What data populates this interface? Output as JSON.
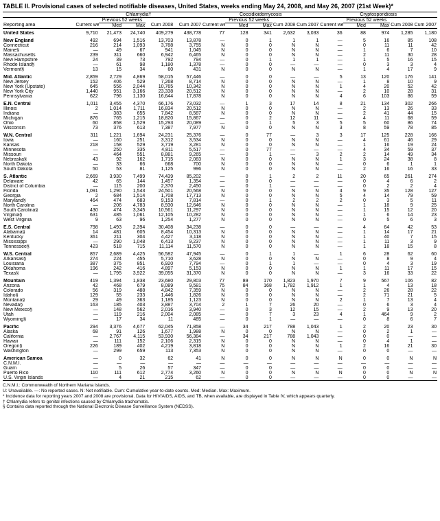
{
  "title": "TABLE II. Provisional cases of selected notifiable diseases, United States, weeks ending May 24, 2008, and May 26, 2007 (21st Week)*",
  "diseases": [
    "Chlamydia†",
    "Coccidioidomycosis",
    "Cryptosporidiosis"
  ],
  "col_headers": {
    "area": "Reporting area",
    "current": "Current week",
    "prev": "Previous 52 weeks",
    "med": "Med",
    "max": "Max",
    "cum08": "Cum 2008",
    "cum07": "Cum 2007"
  },
  "rows": [
    {
      "a": "United States",
      "b": 1,
      "v": [
        "9,710",
        "21,473",
        "24,740",
        "409,279",
        "438,778",
        "77",
        "128",
        "341",
        "2,632",
        "3,033",
        "36",
        "88",
        "974",
        "1,285",
        "1,180"
      ]
    },
    {
      "a": "New England",
      "b": 1,
      "v": [
        "492",
        "694",
        "1,516",
        "13,703",
        "13,878",
        "—",
        "0",
        "1",
        "1",
        "1",
        "—",
        "5",
        "16",
        "85",
        "108"
      ]
    },
    {
      "a": "Connecticut",
      "v": [
        "216",
        "214",
        "1,093",
        "3,788",
        "3,755",
        "N",
        "0",
        "0",
        "N",
        "N",
        "—",
        "0",
        "11",
        "11",
        "42"
      ]
    },
    {
      "a": "Maine§",
      "v": [
        "—",
        "49",
        "67",
        "941",
        "1,045",
        "N",
        "0",
        "0",
        "N",
        "N",
        "—",
        "1",
        "6",
        "7",
        "10"
      ]
    },
    {
      "a": "Massachusetts",
      "v": [
        "239",
        "311",
        "660",
        "6,942",
        "6,465",
        "N",
        "0",
        "0",
        "N",
        "N",
        "—",
        "2",
        "11",
        "30",
        "28"
      ]
    },
    {
      "a": "New Hampshire",
      "v": [
        "24",
        "39",
        "73",
        "792",
        "794",
        "—",
        "0",
        "1",
        "1",
        "1",
        "—",
        "1",
        "5",
        "16",
        "15"
      ]
    },
    {
      "a": "Rhode Island§",
      "v": [
        "—",
        "61",
        "98",
        "1,180",
        "1,378",
        "—",
        "0",
        "0",
        "—",
        "—",
        "—",
        "0",
        "3",
        "3",
        "4"
      ]
    },
    {
      "a": "Vermont§",
      "v": [
        "13",
        "15",
        "34",
        "60",
        "431",
        "N",
        "0",
        "0",
        "N",
        "N",
        "—",
        "1",
        "4",
        "17",
        "9"
      ]
    },
    {
      "a": "Mid. Atlantic",
      "b": 1,
      "v": [
        "2,859",
        "2,729",
        "4,869",
        "58,015",
        "57,446",
        "—",
        "0",
        "0",
        "—",
        "—",
        "5",
        "13",
        "120",
        "176",
        "141"
      ]
    },
    {
      "a": "New Jersey",
      "v": [
        "152",
        "406",
        "529",
        "7,268",
        "8,714",
        "N",
        "0",
        "0",
        "N",
        "N",
        "—",
        "1",
        "8",
        "10",
        "9"
      ]
    },
    {
      "a": "New York (Upstate)",
      "v": [
        "645",
        "556",
        "2,044",
        "10,765",
        "10,342",
        "N",
        "0",
        "0",
        "N",
        "N",
        "1",
        "4",
        "20",
        "52",
        "42"
      ]
    },
    {
      "a": "New York City",
      "v": [
        "1,440",
        "951",
        "3,166",
        "23,338",
        "20,512",
        "N",
        "0",
        "0",
        "N",
        "N",
        "—",
        "2",
        "10",
        "28",
        "31"
      ]
    },
    {
      "a": "Pennsylvania",
      "v": [
        "622",
        "796",
        "1,130",
        "16,644",
        "17,878",
        "N",
        "0",
        "0",
        "N",
        "N",
        "4",
        "6",
        "103",
        "86",
        "59"
      ]
    },
    {
      "a": "E.N. Central",
      "b": 1,
      "v": [
        "1,011",
        "3,455",
        "4,370",
        "66,176",
        "73,032",
        "—",
        "1",
        "3",
        "17",
        "14",
        "8",
        "21",
        "134",
        "302",
        "266"
      ]
    },
    {
      "a": "Illinois",
      "v": [
        "2",
        "1,014",
        "1,711",
        "16,834",
        "20,512",
        "N",
        "0",
        "0",
        "N",
        "N",
        "—",
        "2",
        "13",
        "26",
        "33"
      ]
    },
    {
      "a": "Indiana",
      "v": [
        "—",
        "383",
        "655",
        "7,842",
        "8,587",
        "N",
        "0",
        "0",
        "N",
        "N",
        "—",
        "2",
        "41",
        "44",
        "15"
      ]
    },
    {
      "a": "Michigan",
      "v": [
        "876",
        "765",
        "1,215",
        "18,820",
        "15,867",
        "—",
        "0",
        "2",
        "12",
        "11",
        "—",
        "4",
        "11",
        "68",
        "59"
      ]
    },
    {
      "a": "Ohio",
      "v": [
        "60",
        "858",
        "1,529",
        "15,293",
        "20,089",
        "—",
        "0",
        "1",
        "5",
        "3",
        "5",
        "5",
        "60",
        "86",
        "74"
      ]
    },
    {
      "a": "Wisconsin",
      "v": [
        "73",
        "376",
        "613",
        "7,387",
        "7,977",
        "N",
        "0",
        "0",
        "N",
        "N",
        "3",
        "8",
        "59",
        "78",
        "85"
      ]
    },
    {
      "a": "W.N. Central",
      "b": 1,
      "v": [
        "311",
        "1,221",
        "1,694",
        "24,231",
        "25,376",
        "—",
        "0",
        "77",
        "—",
        "3",
        "3",
        "17",
        "125",
        "228",
        "166"
      ]
    },
    {
      "a": "Iowa",
      "v": [
        "—",
        "160",
        "251",
        "3,312",
        "3,534",
        "N",
        "0",
        "0",
        "N",
        "N",
        "—",
        "4",
        "61",
        "46",
        "29"
      ]
    },
    {
      "a": "Kansas",
      "v": [
        "218",
        "158",
        "529",
        "3,719",
        "3,281",
        "N",
        "0",
        "0",
        "N",
        "N",
        "—",
        "1",
        "16",
        "19",
        "24"
      ]
    },
    {
      "a": "Minnesota",
      "v": [
        "—",
        "250",
        "335",
        "4,811",
        "5,517",
        "—",
        "0",
        "77",
        "—",
        "—",
        "—",
        "4",
        "34",
        "59",
        "37"
      ]
    },
    {
      "a": "Missouri",
      "v": [
        "—",
        "464",
        "551",
        "8,881",
        "9,265",
        "—",
        "0",
        "1",
        "—",
        "3",
        "2",
        "2",
        "14",
        "49",
        "34"
      ]
    },
    {
      "a": "Nebraska§",
      "v": [
        "43",
        "92",
        "162",
        "1,715",
        "2,083",
        "N",
        "0",
        "0",
        "N",
        "N",
        "1",
        "3",
        "24",
        "38",
        "8"
      ]
    },
    {
      "a": "North Dakota",
      "v": [
        "—",
        "33",
        "66",
        "668",
        "700",
        "N",
        "0",
        "0",
        "N",
        "N",
        "—",
        "0",
        "6",
        "1",
        "1"
      ]
    },
    {
      "a": "South Dakota",
      "v": [
        "50",
        "53",
        "81",
        "1,125",
        "996",
        "N",
        "0",
        "0",
        "N",
        "N",
        "—",
        "2",
        "16",
        "16",
        "33"
      ]
    },
    {
      "a": "S. Atlantic",
      "b": 1,
      "v": [
        "2,669",
        "3,930",
        "7,499",
        "74,439",
        "85,202",
        "—",
        "0",
        "1",
        "2",
        "2",
        "11",
        "20",
        "65",
        "261",
        "274"
      ]
    },
    {
      "a": "Delaware",
      "v": [
        "42",
        "65",
        "144",
        "1,457",
        "1,354",
        "—",
        "0",
        "0",
        "—",
        "—",
        "—",
        "0",
        "4",
        "6",
        "2"
      ]
    },
    {
      "a": "District of Columbia",
      "v": [
        "—",
        "115",
        "200",
        "2,370",
        "2,450",
        "—",
        "0",
        "1",
        "—",
        "—",
        "—",
        "0",
        "2",
        "2",
        "4"
      ]
    },
    {
      "a": "Florida",
      "v": [
        "1,091",
        "1,290",
        "1,543",
        "24,501",
        "20,568",
        "N",
        "0",
        "0",
        "N",
        "N",
        "4",
        "9",
        "35",
        "128",
        "127"
      ]
    },
    {
      "a": "Georgia",
      "v": [
        "2",
        "684",
        "1,514",
        "1,708",
        "17,713",
        "N",
        "0",
        "0",
        "N",
        "N",
        "5",
        "4",
        "14",
        "79",
        "59"
      ]
    },
    {
      "a": "Maryland§",
      "v": [
        "464",
        "474",
        "683",
        "9,153",
        "7,814",
        "—",
        "0",
        "1",
        "2",
        "2",
        "2",
        "0",
        "3",
        "5",
        "11"
      ]
    },
    {
      "a": "North Carolina",
      "v": [
        "—",
        "206",
        "4,783",
        "8,930",
        "12,646",
        "N",
        "0",
        "0",
        "N",
        "N",
        "—",
        "1",
        "18",
        "9",
        "25"
      ]
    },
    {
      "a": "South Carolina§",
      "v": [
        "430",
        "474",
        "3,345",
        "10,561",
        "11,297",
        "N",
        "0",
        "0",
        "N",
        "N",
        "—",
        "1",
        "15",
        "12",
        "20"
      ]
    },
    {
      "a": "Virginia§",
      "v": [
        "631",
        "485",
        "1,061",
        "12,105",
        "10,282",
        "N",
        "0",
        "0",
        "N",
        "N",
        "—",
        "1",
        "6",
        "14",
        "23"
      ]
    },
    {
      "a": "West Virginia",
      "v": [
        "9",
        "63",
        "96",
        "1,254",
        "1,277",
        "N",
        "0",
        "0",
        "N",
        "N",
        "—",
        "0",
        "5",
        "6",
        "3"
      ]
    },
    {
      "a": "E.S. Central",
      "b": 1,
      "v": [
        "798",
        "1,493",
        "2,394",
        "30,408",
        "34,238",
        "—",
        "0",
        "0",
        "—",
        "—",
        "—",
        "4",
        "64",
        "42",
        "53"
      ]
    },
    {
      "a": "Alabama§",
      "v": [
        "14",
        "481",
        "605",
        "8,454",
        "10,313",
        "N",
        "0",
        "0",
        "N",
        "N",
        "—",
        "1",
        "14",
        "17",
        "21"
      ]
    },
    {
      "a": "Kentucky",
      "v": [
        "361",
        "211",
        "304",
        "4,427",
        "3,118",
        "N",
        "0",
        "0",
        "N",
        "N",
        "—",
        "1",
        "40",
        "7",
        "15"
      ]
    },
    {
      "a": "Mississippi",
      "v": [
        "—",
        "290",
        "1,048",
        "6,413",
        "9,237",
        "N",
        "0",
        "0",
        "N",
        "N",
        "—",
        "1",
        "11",
        "3",
        "9"
      ]
    },
    {
      "a": "Tennessee§",
      "v": [
        "423",
        "518",
        "715",
        "11,114",
        "11,570",
        "N",
        "0",
        "0",
        "N",
        "N",
        "—",
        "1",
        "18",
        "15",
        "8"
      ]
    },
    {
      "a": "W.S. Central",
      "b": 1,
      "v": [
        "857",
        "2,689",
        "4,425",
        "56,582",
        "47,945",
        "—",
        "0",
        "1",
        "1",
        "—",
        "1",
        "6",
        "28",
        "62",
        "60"
      ]
    },
    {
      "a": "Arkansas§",
      "v": [
        "274",
        "224",
        "455",
        "5,710",
        "3,628",
        "N",
        "0",
        "0",
        "N",
        "N",
        "—",
        "0",
        "8",
        "9",
        "4"
      ]
    },
    {
      "a": "Louisiana",
      "v": [
        "387",
        "375",
        "851",
        "6,920",
        "7,794",
        "—",
        "0",
        "1",
        "1",
        "—",
        "—",
        "0",
        "4",
        "3",
        "19"
      ]
    },
    {
      "a": "Oklahoma",
      "v": [
        "196",
        "242",
        "416",
        "4,897",
        "5,153",
        "N",
        "0",
        "0",
        "N",
        "N",
        "1",
        "1",
        "11",
        "17",
        "15"
      ]
    },
    {
      "a": "Texas§",
      "v": [
        "—",
        "1,795",
        "3,922",
        "39,055",
        "31,370",
        "N",
        "0",
        "0",
        "N",
        "N",
        "—",
        "3",
        "16",
        "33",
        "22"
      ]
    },
    {
      "a": "Mountain",
      "b": 1,
      "v": [
        "419",
        "1,394",
        "1,838",
        "23,680",
        "29,803",
        "77",
        "89",
        "170",
        "1,823",
        "1,970",
        "7",
        "9",
        "567",
        "106",
        "82"
      ]
    },
    {
      "a": "Arizona",
      "v": [
        "42",
        "468",
        "679",
        "8,089",
        "9,581",
        "75",
        "84",
        "168",
        "1,782",
        "1,912",
        "1",
        "1",
        "4",
        "13",
        "18"
      ]
    },
    {
      "a": "Colorado",
      "v": [
        "56",
        "319",
        "488",
        "4,842",
        "7,359",
        "N",
        "0",
        "0",
        "N",
        "N",
        "—",
        "2",
        "26",
        "28",
        "22"
      ]
    },
    {
      "a": "Idaho§",
      "v": [
        "129",
        "55",
        "233",
        "1,446",
        "1,826",
        "N",
        "0",
        "0",
        "N",
        "N",
        "—",
        "2",
        "71",
        "21",
        "5"
      ]
    },
    {
      "a": "Montana§",
      "v": [
        "29",
        "49",
        "363",
        "1,185",
        "1,123",
        "N",
        "0",
        "0",
        "N",
        "N",
        "2",
        "1",
        "7",
        "13",
        "4"
      ]
    },
    {
      "a": "Nevada§",
      "v": [
        "163",
        "185",
        "403",
        "3,887",
        "3,704",
        "2",
        "1",
        "7",
        "26",
        "20",
        "—",
        "0",
        "6",
        "3",
        "4"
      ]
    },
    {
      "a": "New Mexico§",
      "v": [
        "—",
        "148",
        "562",
        "2,016",
        "3,940",
        "—",
        "0",
        "3",
        "12",
        "15",
        "—",
        "2",
        "9",
        "13",
        "20"
      ]
    },
    {
      "a": "Utah",
      "v": [
        "—",
        "119",
        "216",
        "2,004",
        "2,085",
        "—",
        "0",
        "7",
        "3",
        "23",
        "4",
        "1",
        "464",
        "9",
        "2"
      ]
    },
    {
      "a": "Wyoming§",
      "v": [
        "—",
        "17",
        "34",
        "11",
        "485",
        "—",
        "0",
        "1",
        "—",
        "—",
        "—",
        "0",
        "8",
        "6",
        "7"
      ]
    },
    {
      "a": "Pacific",
      "b": 1,
      "v": [
        "294",
        "3,376",
        "4,677",
        "62,045",
        "71,858",
        "—",
        "34",
        "217",
        "788",
        "1,043",
        "1",
        "2",
        "20",
        "23",
        "30"
      ]
    },
    {
      "a": "Alaska",
      "v": [
        "68",
        "91",
        "126",
        "1,677",
        "1,988",
        "N",
        "0",
        "0",
        "N",
        "N",
        "—",
        "0",
        "2",
        "1",
        "—"
      ]
    },
    {
      "a": "California",
      "v": [
        "—",
        "2,767",
        "4,115",
        "53,930",
        "56,384",
        "—",
        "34",
        "217",
        "788",
        "1,043",
        "—",
        "0",
        "0",
        "—",
        "—"
      ]
    },
    {
      "a": "Hawaii",
      "v": [
        "—",
        "111",
        "152",
        "2,106",
        "2,315",
        "N",
        "0",
        "0",
        "N",
        "N",
        "—",
        "0",
        "4",
        "1",
        "—"
      ]
    },
    {
      "a": "Oregon§",
      "v": [
        "226",
        "189",
        "402",
        "4,219",
        "3,818",
        "N",
        "0",
        "0",
        "N",
        "N",
        "1",
        "2",
        "16",
        "21",
        "30"
      ]
    },
    {
      "a": "Washington",
      "v": [
        "—",
        "299",
        "659",
        "113",
        "7,353",
        "N",
        "0",
        "0",
        "N",
        "N",
        "—",
        "0",
        "0",
        "—",
        "—"
      ]
    },
    {
      "a": "American Samoa",
      "b": 1,
      "v": [
        "—",
        "0",
        "32",
        "62",
        "41",
        "N",
        "0",
        "0",
        "N",
        "N",
        "N",
        "0",
        "0",
        "N",
        "N"
      ]
    },
    {
      "a": "C.N.M.I.",
      "v": [
        "—",
        "—",
        "—",
        "—",
        "—",
        "—",
        "—",
        "—",
        "—",
        "—",
        "—",
        "—",
        "—",
        "—",
        "—"
      ]
    },
    {
      "a": "Guam",
      "v": [
        "—",
        "5",
        "26",
        "57",
        "347",
        "—",
        "0",
        "0",
        "—",
        "—",
        "—",
        "0",
        "0",
        "—",
        "—"
      ]
    },
    {
      "a": "Puerto Rico",
      "v": [
        "110",
        "111",
        "612",
        "2,774",
        "3,260",
        "N",
        "0",
        "0",
        "N",
        "N",
        "N",
        "0",
        "0",
        "N",
        "N"
      ]
    },
    {
      "a": "U.S. Virgin Islands",
      "v": [
        "—",
        "4",
        "21",
        "215",
        "62",
        "—",
        "0",
        "0",
        "—",
        "—",
        "—",
        "0",
        "0",
        "—",
        "—"
      ]
    }
  ],
  "footnotes": [
    "C.N.M.I.: Commonwealth of Northern Mariana Islands.",
    "U: Unavailable.  —: No reported cases.  N: Not notifiable.  Cum: Cumulative year-to-date counts.  Med: Median.  Max: Maximum.",
    "* Incidence data for reporting years 2007 and 2008 are provisional. Data for HIV/AIDS, AIDS, and TB, when available, are displayed in Table IV, which appears quarterly.",
    "† Chlamydia refers to genital infections caused by Chlamydia trachomatis.",
    "§ Contains data reported through the National Electronic Disease Surveillance System (NEDSS)."
  ],
  "colors": {
    "text": "#000000",
    "bg": "#ffffff",
    "border": "#000000"
  }
}
